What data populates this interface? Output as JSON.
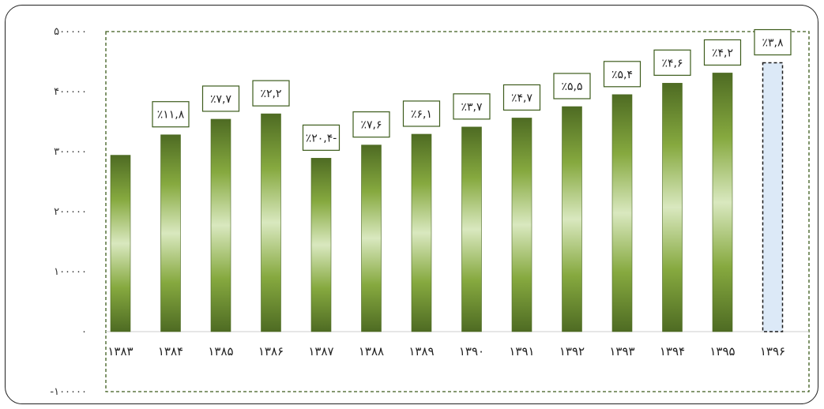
{
  "chart_data": {
    "type": "bar",
    "categories": [
      "۱۳۸۳",
      "۱۳۸۴",
      "۱۳۸۵",
      "۱۳۸۶",
      "۱۳۸۷",
      "۱۳۸۸",
      "۱۳۸۹",
      "۱۳۹۰",
      "۱۳۹۱",
      "۱۳۹۲",
      "۱۳۹۳",
      "۱۳۹۴",
      "۱۳۹۵",
      "۱۳۹۶"
    ],
    "values": [
      294000,
      328000,
      354000,
      363000,
      289000,
      311000,
      329000,
      341000,
      356000,
      375000,
      395000,
      414000,
      431000,
      448000
    ],
    "data_labels": [
      "",
      "٪۱۱,۸",
      "٪۷,۷",
      "٪۲,۲",
      "٪۲۰,۴-",
      "٪۷,۶",
      "٪۶,۱",
      "٪۳,۷",
      "٪۴,۷",
      "٪۵,۵",
      "٪۵,۴",
      "٪۴,۶",
      "٪۴,۲",
      "٪۳,۸"
    ],
    "projected_index": 13,
    "y_ticks": [
      {
        "value": 500000,
        "label": "۵۰۰۰۰۰"
      },
      {
        "value": 400000,
        "label": "۴۰۰۰۰۰"
      },
      {
        "value": 300000,
        "label": "۳۰۰۰۰۰"
      },
      {
        "value": 200000,
        "label": "۲۰۰۰۰۰"
      },
      {
        "value": 100000,
        "label": "۱۰۰۰۰۰"
      },
      {
        "value": 0,
        "label": "۰"
      },
      {
        "value": -100000,
        "label": "-۱۰۰۰۰۰"
      }
    ],
    "ylim": [
      -100000,
      500000
    ],
    "title": "",
    "xlabel": "",
    "ylabel": "",
    "grid": false,
    "colors": {
      "bar_dark": "#4e6b23",
      "bar_light": "#d9e8bf",
      "projected_fill": "#dce9f7",
      "projected_border": "#1a1a1a",
      "label_border": "#3d5c1c",
      "plot_border": "#3d5c1c"
    }
  }
}
